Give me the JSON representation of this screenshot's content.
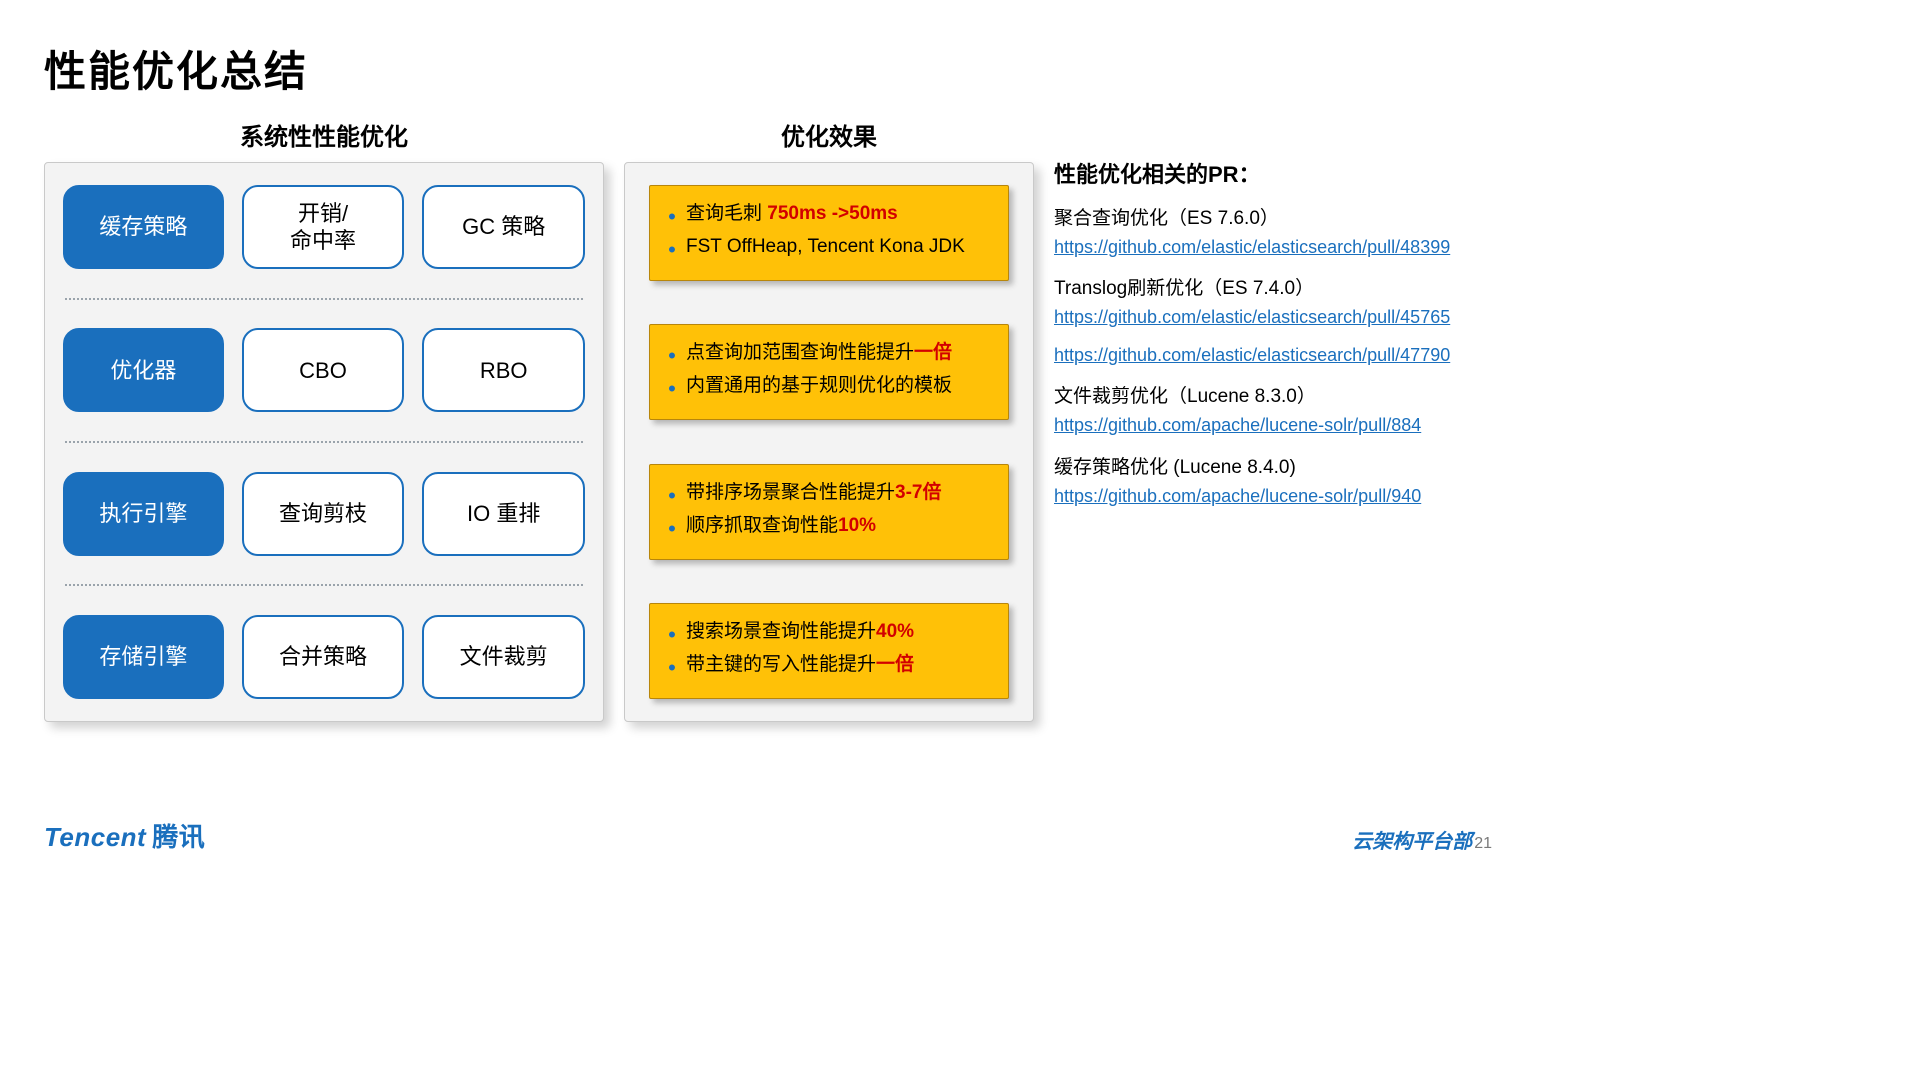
{
  "title": "性能优化总结",
  "left": {
    "heading": "系统性性能优化",
    "rows": [
      {
        "blue": "缓存策略",
        "a": "开销/\n命中率",
        "b": "GC 策略"
      },
      {
        "blue": "优化器",
        "a": "CBO",
        "b": "RBO"
      },
      {
        "blue": "执行引擎",
        "a": "查询剪枝",
        "b": "IO 重排"
      },
      {
        "blue": "存储引擎",
        "a": "合并策略",
        "b": "文件裁剪"
      }
    ]
  },
  "mid": {
    "heading": "优化效果",
    "boxes": [
      [
        {
          "pre": "查询毛刺 ",
          "red": "750ms ->50ms",
          "post": ""
        },
        {
          "pre": "FST OffHeap, Tencent Kona JDK",
          "red": "",
          "post": ""
        }
      ],
      [
        {
          "pre": "点查询加范围查询性能提升",
          "red": "一倍",
          "post": ""
        },
        {
          "pre": "内置通用的基于规则优化的模板",
          "red": "",
          "post": ""
        }
      ],
      [
        {
          "pre": "带排序场景聚合性能提升",
          "red": "3-7倍",
          "post": ""
        },
        {
          "pre": "顺序抓取查询性能",
          "red": "10%",
          "post": ""
        }
      ],
      [
        {
          "pre": "搜索场景查询性能提升",
          "red": "40%",
          "post": ""
        },
        {
          "pre": "带主键的写入性能提升",
          "red": "一倍",
          "post": ""
        }
      ]
    ]
  },
  "right": {
    "heading": "性能优化相关的PR：",
    "items": [
      {
        "label": "聚合查询优化（ES 7.6.0）",
        "links": [
          "https://github.com/elastic/elasticsearch/pull/48399"
        ]
      },
      {
        "label": "Translog刷新优化（ES 7.4.0）",
        "links": [
          "https://github.com/elastic/elasticsearch/pull/45765",
          "https://github.com/elastic/elasticsearch/pull/47790"
        ]
      },
      {
        "label": "文件裁剪优化（Lucene 8.3.0）",
        "links": [
          "https://github.com/apache/lucene-solr/pull/884"
        ]
      },
      {
        "label": "缓存策略优化 (Lucene 8.4.0)",
        "links": [
          "https://github.com/apache/lucene-solr/pull/940"
        ]
      }
    ]
  },
  "footer": {
    "brand_en": "Tencent",
    "brand_cn": "腾讯",
    "dept": "云架构平台部",
    "page": "21"
  }
}
